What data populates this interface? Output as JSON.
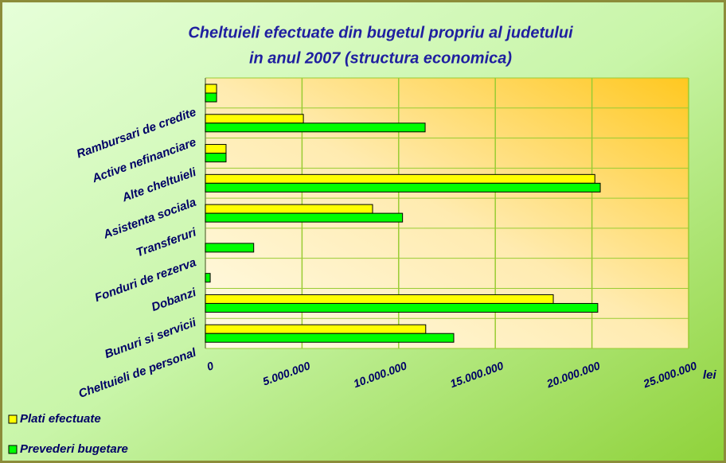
{
  "chart_data": {
    "type": "barh",
    "title": [
      "Cheltuieli efectuate din bugetul propriu al judetului",
      "in anul 2007 (structura economica)"
    ],
    "xlabel": "lei",
    "categories": [
      "Cheltuieli de personal",
      "Bunuri si servicii",
      "Dobanzi",
      "Fonduri de rezerva",
      "Transferuri",
      "Asistenta sociala",
      "Alte cheltuieli",
      "Active nefinanciare",
      "Rambursari de credite"
    ],
    "series": [
      {
        "name": "Plati efectuate",
        "color": "#ffff00",
        "values": [
          11400000,
          18000000,
          null,
          null,
          8650000,
          20150000,
          1070000,
          5070000,
          580000
        ]
      },
      {
        "name": "Prevederi bugetare",
        "color": "#00ff00",
        "values": [
          12850000,
          20300000,
          250000,
          2500000,
          10200000,
          20430000,
          1070000,
          11370000,
          580000
        ]
      }
    ],
    "xlim": [
      0,
      25000000
    ],
    "xticks": [
      0,
      {
        "value": 5000000,
        "label": "5.000.000"
      },
      {
        "value": 10000000,
        "label": "10.000.000"
      },
      {
        "value": 15000000,
        "label": "15.000.000"
      },
      {
        "value": 20000000,
        "label": "20.000.000"
      },
      {
        "value": 25000000,
        "label": "25.000.000"
      }
    ],
    "grid": true,
    "legend": "bottom-left"
  }
}
